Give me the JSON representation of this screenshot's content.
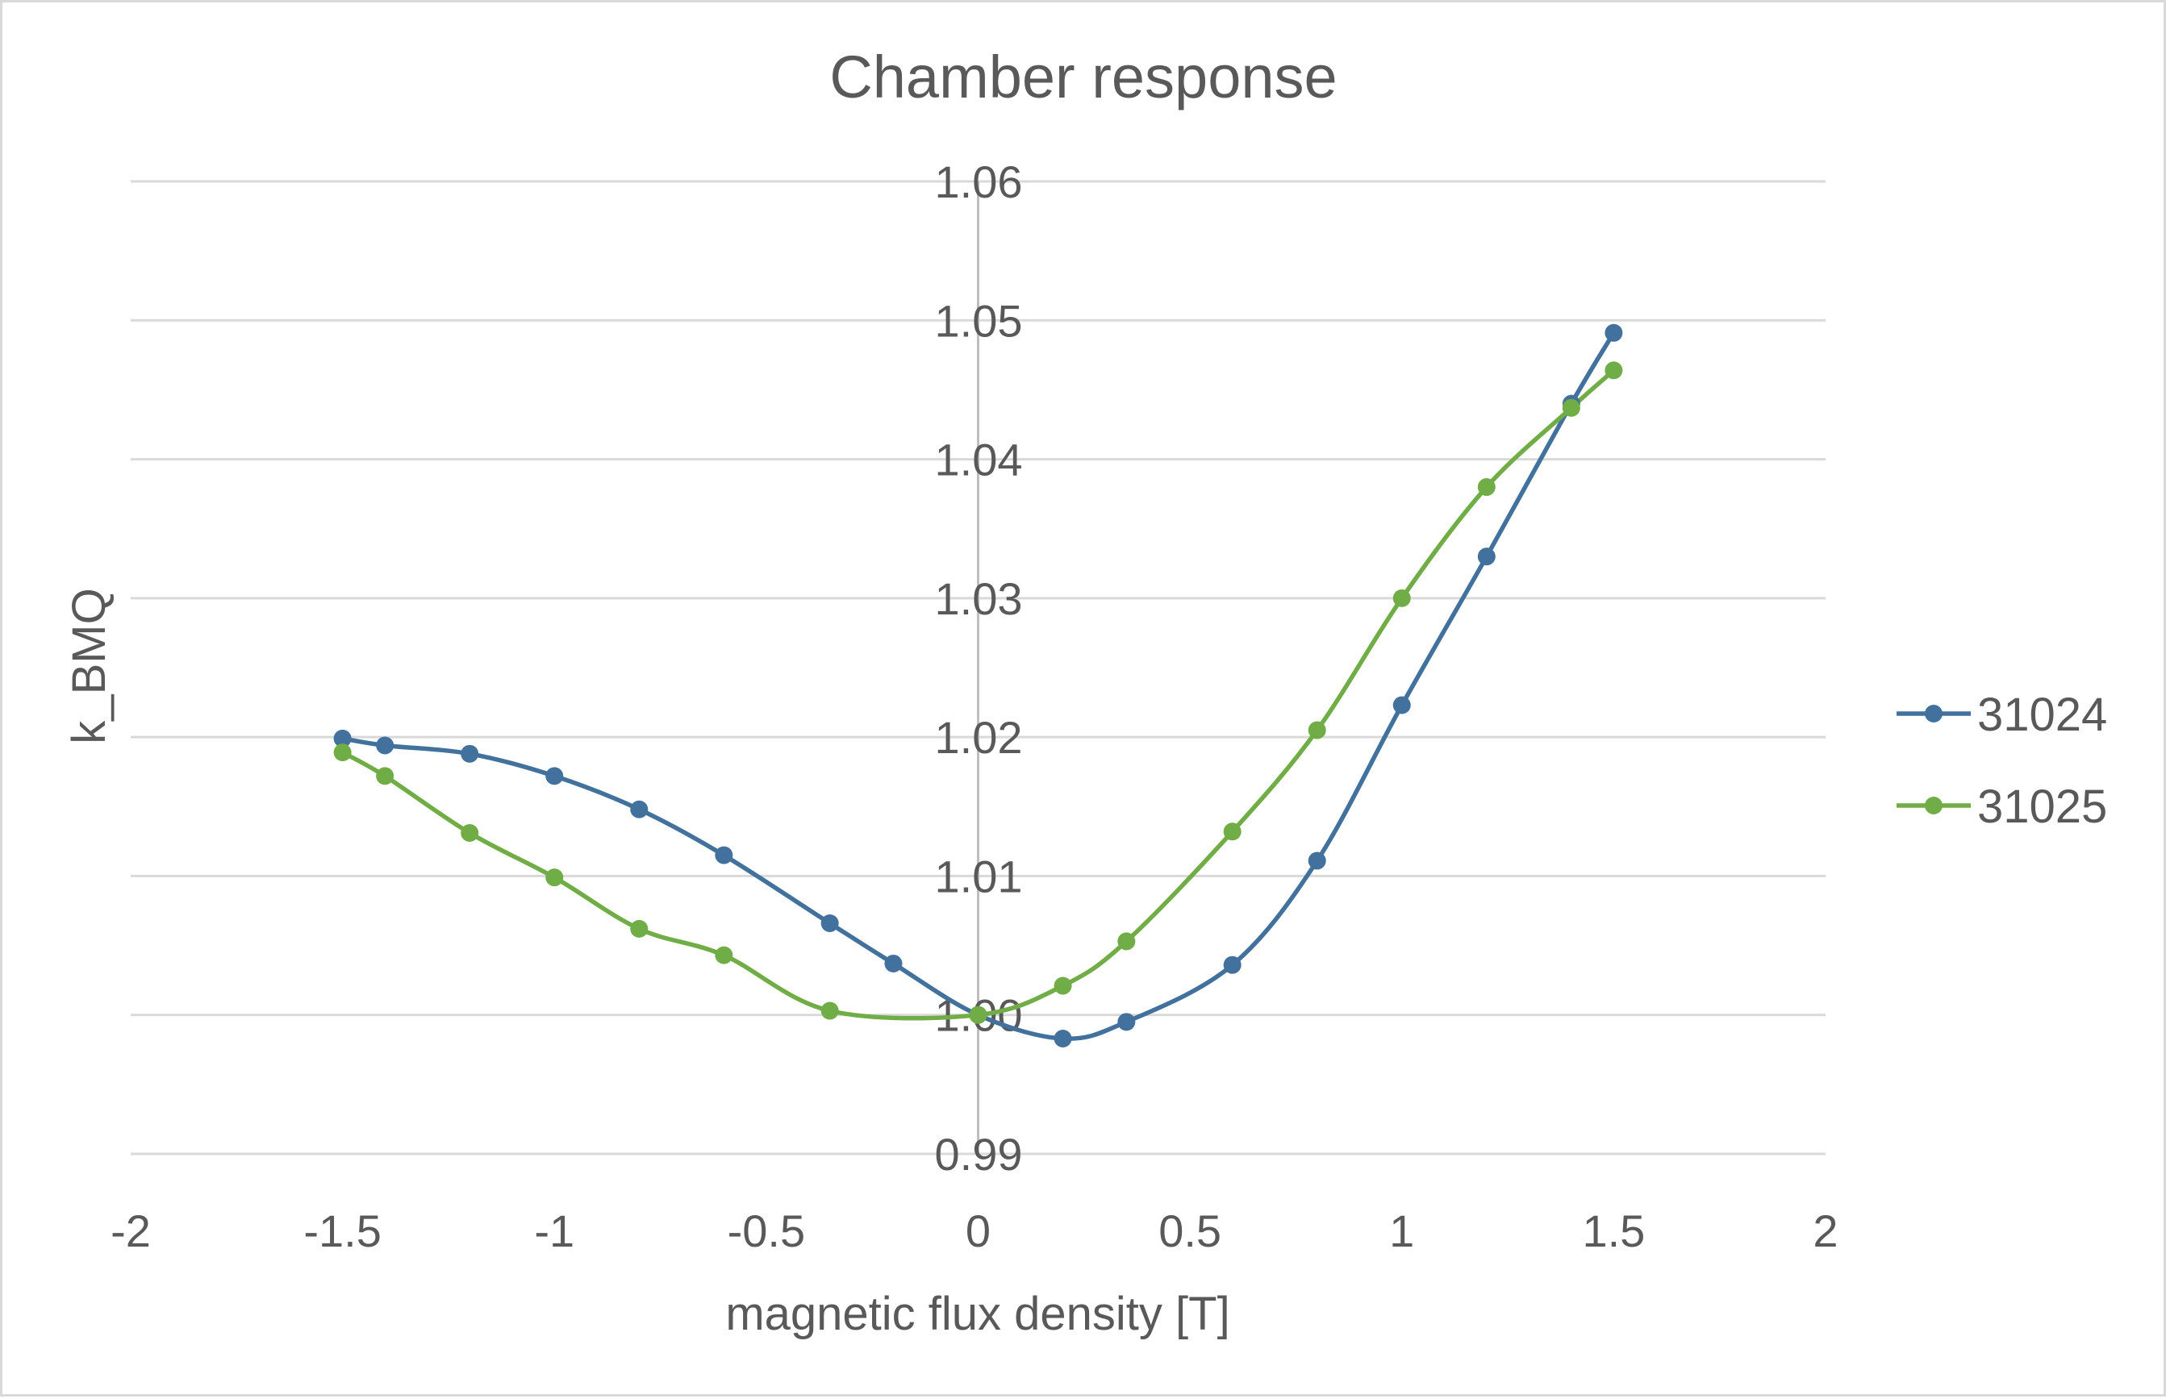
{
  "chart_data": {
    "type": "scatter",
    "title": "Chamber response",
    "xlabel": "magnetic flux density [T]",
    "ylabel": "k_BMQ",
    "xlim": [
      -2,
      2
    ],
    "ylim": [
      0.99,
      1.06
    ],
    "x_ticks": [
      "-2",
      "-1.5",
      "-1",
      "-0.5",
      "0",
      "0.5",
      "1",
      "1.5",
      "2"
    ],
    "y_ticks": [
      "0.99",
      "1.00",
      "1.01",
      "1.02",
      "1.03",
      "1.04",
      "1.05",
      "1.06"
    ],
    "grid": "horizontal",
    "legend_position": "right",
    "line_style": "smooth",
    "series": [
      {
        "name": "31024",
        "color": "#41719c",
        "points": [
          [
            -1.5,
            1.0199
          ],
          [
            -1.4,
            1.0194
          ],
          [
            -1.2,
            1.0188
          ],
          [
            -1.0,
            1.0172
          ],
          [
            -0.8,
            1.0148
          ],
          [
            -0.6,
            1.0115
          ],
          [
            -0.35,
            1.0066
          ],
          [
            -0.2,
            1.0037
          ],
          [
            0.0,
            1.0
          ],
          [
            0.2,
            0.9983
          ],
          [
            0.35,
            0.9995
          ],
          [
            0.6,
            1.0036
          ],
          [
            0.8,
            1.0111
          ],
          [
            1.0,
            1.0223
          ],
          [
            1.2,
            1.033
          ],
          [
            1.4,
            1.044
          ],
          [
            1.5,
            1.0491
          ]
        ]
      },
      {
        "name": "31025",
        "color": "#70ad47",
        "points": [
          [
            -1.5,
            1.0189
          ],
          [
            -1.4,
            1.0172
          ],
          [
            -1.2,
            1.0131
          ],
          [
            -1.0,
            1.0099
          ],
          [
            -0.8,
            1.0062
          ],
          [
            -0.6,
            1.0043
          ],
          [
            -0.35,
            1.0003
          ],
          [
            0.0,
            1.0
          ],
          [
            0.2,
            1.0021
          ],
          [
            0.35,
            1.0053
          ],
          [
            0.6,
            1.0132
          ],
          [
            0.8,
            1.0205
          ],
          [
            1.0,
            1.03
          ],
          [
            1.2,
            1.038
          ],
          [
            1.4,
            1.0437
          ],
          [
            1.5,
            1.0464
          ]
        ]
      }
    ]
  }
}
